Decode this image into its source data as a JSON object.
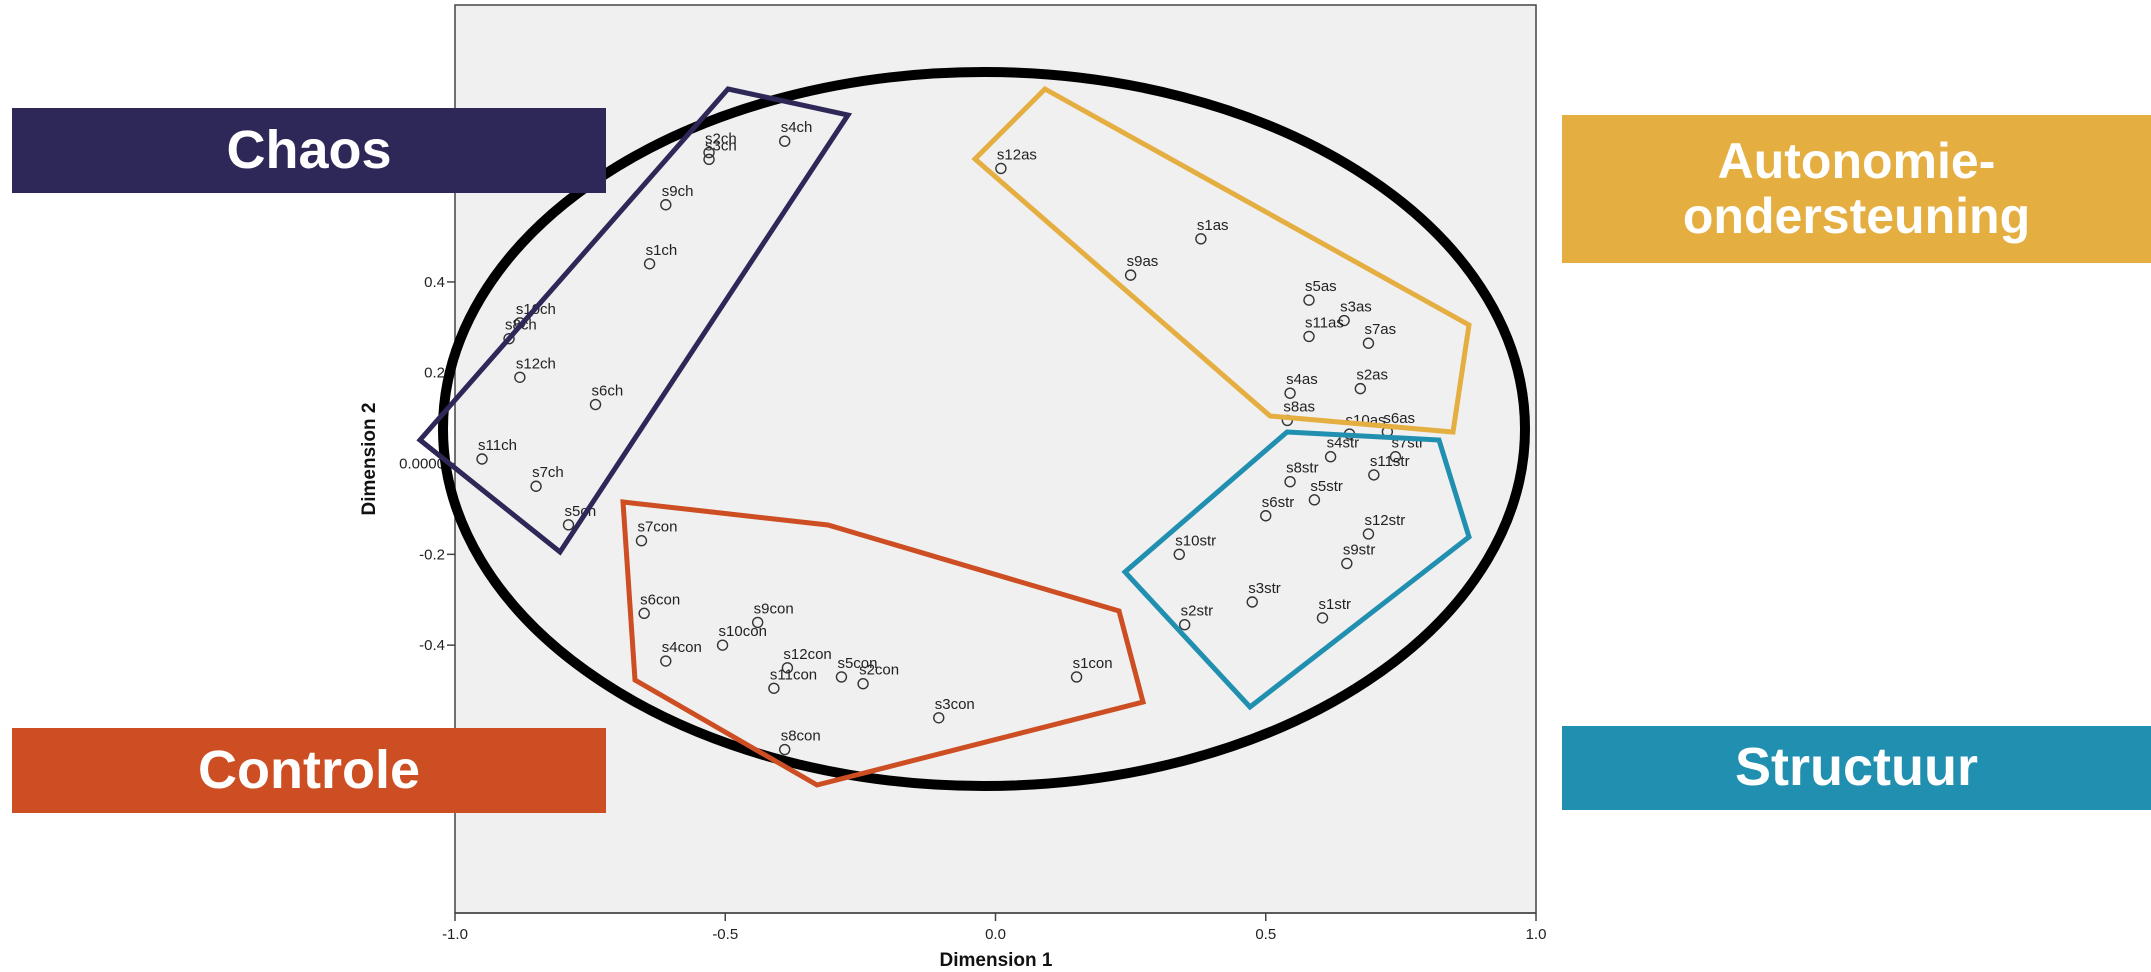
{
  "chart_data": {
    "type": "scatter",
    "xlabel": "Dimension 1",
    "ylabel": "Dimension 2",
    "xlim": [
      -1.0,
      1.0
    ],
    "ylim": [
      -0.99,
      1.01
    ],
    "x_ticks": [
      "-1.0",
      "-0.5",
      "0.0",
      "0.5",
      "1.0"
    ],
    "y_ticks": [
      {
        "value": 0.4,
        "label": "0.4"
      },
      {
        "value": 0.2,
        "label": "0.2"
      },
      {
        "value": 0.0,
        "label": "0.0000"
      },
      {
        "value": -0.2,
        "label": "-0.2"
      },
      {
        "value": -0.4,
        "label": "-0.4"
      }
    ],
    "points": [
      {
        "label": "s4ch",
        "x": -0.39,
        "y": 0.71
      },
      {
        "label": "s3ch",
        "x": -0.53,
        "y": 0.67
      },
      {
        "label": "s2ch",
        "x": -0.53,
        "y": 0.685
      },
      {
        "label": "s9ch",
        "x": -0.61,
        "y": 0.57
      },
      {
        "label": "s1ch",
        "x": -0.64,
        "y": 0.44
      },
      {
        "label": "s10ch",
        "x": -0.88,
        "y": 0.31
      },
      {
        "label": "s8ch",
        "x": -0.9,
        "y": 0.275
      },
      {
        "label": "s12ch",
        "x": -0.88,
        "y": 0.19
      },
      {
        "label": "s6ch",
        "x": -0.74,
        "y": 0.13
      },
      {
        "label": "s11ch",
        "x": -0.95,
        "y": 0.01
      },
      {
        "label": "s7ch",
        "x": -0.85,
        "y": -0.05
      },
      {
        "label": "s5ch",
        "x": -0.79,
        "y": -0.135
      },
      {
        "label": "s12as",
        "x": 0.01,
        "y": 0.65
      },
      {
        "label": "s1as",
        "x": 0.38,
        "y": 0.495
      },
      {
        "label": "s9as",
        "x": 0.25,
        "y": 0.415
      },
      {
        "label": "s5as",
        "x": 0.58,
        "y": 0.36
      },
      {
        "label": "s3as",
        "x": 0.645,
        "y": 0.315
      },
      {
        "label": "s7as",
        "x": 0.69,
        "y": 0.265
      },
      {
        "label": "s11as",
        "x": 0.58,
        "y": 0.28
      },
      {
        "label": "s4as",
        "x": 0.545,
        "y": 0.155
      },
      {
        "label": "s2as",
        "x": 0.675,
        "y": 0.165
      },
      {
        "label": "s8as",
        "x": 0.54,
        "y": 0.095
      },
      {
        "label": "s10as",
        "x": 0.655,
        "y": 0.065
      },
      {
        "label": "s6as",
        "x": 0.725,
        "y": 0.07
      },
      {
        "label": "s4str",
        "x": 0.62,
        "y": 0.015
      },
      {
        "label": "s7str",
        "x": 0.74,
        "y": 0.015
      },
      {
        "label": "s8str",
        "x": 0.545,
        "y": -0.04
      },
      {
        "label": "s11str",
        "x": 0.7,
        "y": -0.025
      },
      {
        "label": "s5str",
        "x": 0.59,
        "y": -0.08
      },
      {
        "label": "s6str",
        "x": 0.5,
        "y": -0.115
      },
      {
        "label": "s12str",
        "x": 0.69,
        "y": -0.155
      },
      {
        "label": "s10str",
        "x": 0.34,
        "y": -0.2
      },
      {
        "label": "s9str",
        "x": 0.65,
        "y": -0.22
      },
      {
        "label": "s3str",
        "x": 0.475,
        "y": -0.305
      },
      {
        "label": "s1str",
        "x": 0.605,
        "y": -0.34
      },
      {
        "label": "s2str",
        "x": 0.35,
        "y": -0.355
      },
      {
        "label": "s7con",
        "x": -0.655,
        "y": -0.17
      },
      {
        "label": "s6con",
        "x": -0.65,
        "y": -0.33
      },
      {
        "label": "s9con",
        "x": -0.44,
        "y": -0.35
      },
      {
        "label": "s4con",
        "x": -0.61,
        "y": -0.435
      },
      {
        "label": "s10con",
        "x": -0.505,
        "y": -0.4
      },
      {
        "label": "s12con",
        "x": -0.385,
        "y": -0.45
      },
      {
        "label": "s2con",
        "x": -0.245,
        "y": -0.485
      },
      {
        "label": "s11con",
        "x": -0.41,
        "y": -0.495
      },
      {
        "label": "s5con",
        "x": -0.285,
        "y": -0.47
      },
      {
        "label": "s1con",
        "x": 0.15,
        "y": -0.47
      },
      {
        "label": "s3con",
        "x": -0.105,
        "y": -0.56
      },
      {
        "label": "s8con",
        "x": -0.39,
        "y": -0.63
      }
    ],
    "groups": [
      {
        "name": "Chaos",
        "color": "#2e2858"
      },
      {
        "name": "Autonomie-ondersteuning",
        "color": "#e5ae41"
      },
      {
        "name": "Structuur",
        "color": "#218fb0"
      },
      {
        "name": "Controle",
        "color": "#cc4e22"
      }
    ]
  },
  "banners": {
    "chaos": "Chaos",
    "autonomie_line1": "Autonomie-",
    "autonomie_line2": "ondersteuning",
    "structuur": "Structuur",
    "controle": "Controle"
  },
  "colors": {
    "chaos": "#2e2858",
    "autonomie": "#e5ae41",
    "structuur": "#218fb0",
    "controle": "#cc4e22",
    "ellipse": "#000000"
  }
}
